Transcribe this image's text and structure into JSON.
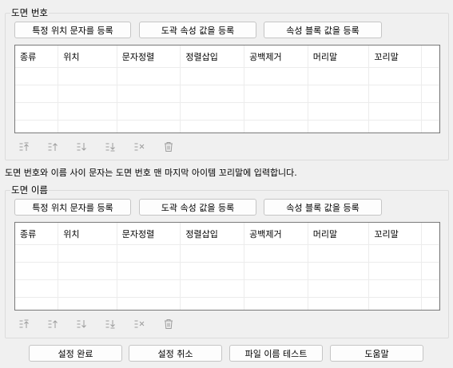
{
  "group1": {
    "title": "도면 번호"
  },
  "group2": {
    "title": "도면 이름"
  },
  "register_buttons": {
    "specific_char": "특정 위치 문자를 등록",
    "attr_value": "도곽 속성 값을 등록",
    "block_attr_value": "속성 블록 값을 등록"
  },
  "table": {
    "columns": [
      "종류",
      "위치",
      "문자정렬",
      "정렬삽입",
      "공백제거",
      "머리말",
      "꼬리말"
    ],
    "rows": []
  },
  "toolbar": {
    "icons": [
      "move-top-icon",
      "move-up-icon",
      "move-down-icon",
      "move-bottom-icon",
      "delete-icon",
      "delete-all-icon"
    ]
  },
  "note": "도면 번호와 이름 사이 문자는 도면 번호 맨 마지막 아이템 꼬리말에 입력합니다.",
  "footer": {
    "apply": "설정 완료",
    "cancel": "설정 취소",
    "test": "파일 이름 테스트",
    "help": "도움말"
  },
  "colors": {
    "background": "#f0f0f0",
    "icon": "#9c9c9c",
    "grid_border": "#7a7a7a"
  }
}
